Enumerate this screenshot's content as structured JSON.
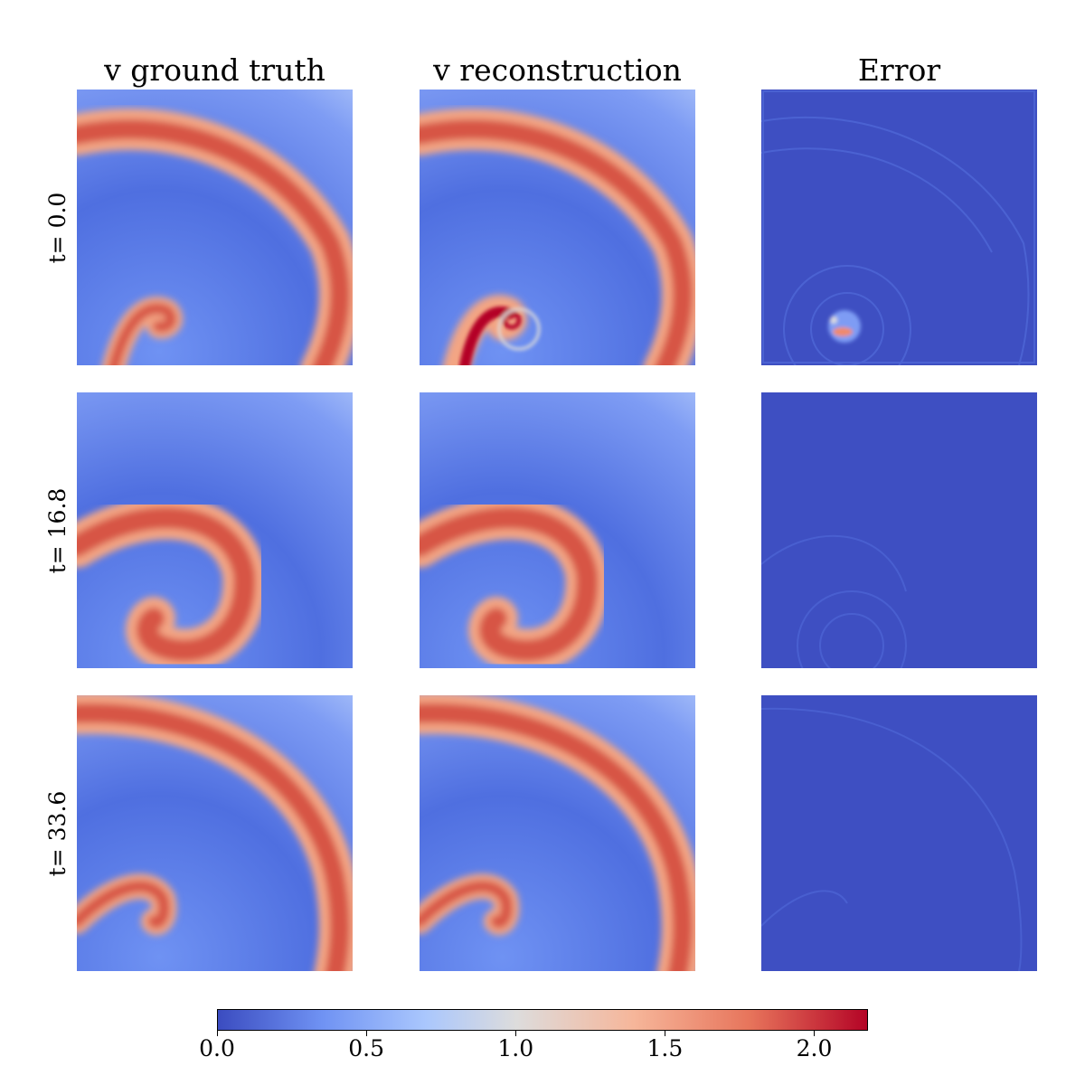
{
  "columns": [
    "v ground truth",
    "v reconstruction",
    "Error"
  ],
  "rows": [
    "t= 0.0",
    "t= 16.8",
    "t= 33.6"
  ],
  "colorbar": {
    "colormap": "coolwarm",
    "min": 0.0,
    "max": 2.18,
    "ticks": [
      "0.0",
      "0.5",
      "1.0",
      "1.5",
      "2.0"
    ],
    "tick_values": [
      0.0,
      0.5,
      1.0,
      1.5,
      2.0
    ],
    "colors": [
      "#3b4cc0",
      "#6f92f3",
      "#aac7fd",
      "#dddcdc",
      "#f6b69a",
      "#e7745b",
      "#b40426"
    ]
  },
  "chart_data": {
    "type": "heatmap",
    "panels": [
      {
        "column": "v ground truth",
        "row": "t= 0.0",
        "field": "spiral wave, wave fronts near top and right edges, spiral core bottom-left",
        "value_range": [
          0.2,
          1.9
        ]
      },
      {
        "column": "v reconstruction",
        "row": "t= 0.0",
        "field": "spiral wave with artifacts near core",
        "value_range": [
          0.2,
          2.18
        ]
      },
      {
        "column": "Error",
        "row": "t= 0.0",
        "field": "mostly near 0, ring artifacts, localized error near spiral core up to ~1.4",
        "value_range": [
          0.0,
          1.4
        ]
      },
      {
        "column": "v ground truth",
        "row": "t= 16.8",
        "field": "spiral wave, front in middle-left",
        "value_range": [
          0.2,
          1.9
        ]
      },
      {
        "column": "v reconstruction",
        "row": "t= 16.8",
        "field": "spiral wave",
        "value_range": [
          0.2,
          1.9
        ]
      },
      {
        "column": "Error",
        "row": "t= 16.8",
        "field": "near 0 with faint rings",
        "value_range": [
          0.0,
          0.4
        ]
      },
      {
        "column": "v ground truth",
        "row": "t= 33.6",
        "field": "spiral wave, fronts near top and right, core lower-left",
        "value_range": [
          0.2,
          1.9
        ]
      },
      {
        "column": "v reconstruction",
        "row": "t= 33.6",
        "field": "spiral wave",
        "value_range": [
          0.2,
          1.9
        ]
      },
      {
        "column": "Error",
        "row": "t= 33.6",
        "field": "near 0 with faint arcs",
        "value_range": [
          0.0,
          0.3
        ]
      }
    ]
  }
}
